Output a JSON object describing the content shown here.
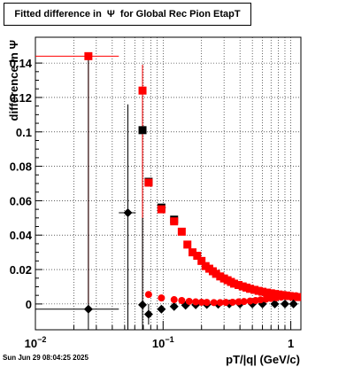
{
  "canvas": {
    "timestamp": "Sun Jun 29 08:04:25 2025"
  },
  "chart_data": {
    "type": "scatter",
    "title": "Fitted difference in  Ψ  for Global Rec Pion EtapT",
    "xlabel": "pT/|q| (GeV/c)",
    "ylabel": "difference in Ψ",
    "xscale": "log",
    "xlim": [
      0.01,
      1.2
    ],
    "ylim": [
      -0.015,
      0.155
    ],
    "grid": true,
    "x_tick_labels": [
      {
        "value": 0.01,
        "base": "10",
        "exp": "−2"
      },
      {
        "value": 0.1,
        "base": "10",
        "exp": "−1"
      },
      {
        "value": 1,
        "base": "1",
        "exp": ""
      }
    ],
    "y_ticks": [
      0,
      0.02,
      0.04,
      0.06,
      0.08,
      0.1,
      0.12,
      0.14
    ],
    "y_tick_labels": [
      "0",
      "0.02",
      "0.04",
      "0.06",
      "0.08",
      "0.1",
      "0.12",
      "0.14"
    ],
    "series": [
      {
        "color": "#000000",
        "marker": "square",
        "points": [
          {
            "x": 0.069,
            "y": 0.101,
            "ylo": 0.0,
            "yhi": 0.117,
            "xlo": 0.0665,
            "xhi": 0.0715
          },
          {
            "x": 0.077,
            "y": 0.071,
            "xlo": 0.0745,
            "xhi": 0.0795
          },
          {
            "x": 0.097,
            "y": 0.056,
            "xlo": 0.09,
            "xhi": 0.105
          },
          {
            "x": 0.122,
            "y": 0.049,
            "xlo": 0.115,
            "xhi": 0.13
          }
        ]
      },
      {
        "color": "#ff0000",
        "marker": "square",
        "points": [
          {
            "x": 0.026,
            "y": 0.144,
            "ylo": 0.0,
            "yhi": 0.144,
            "xlo": 0.01,
            "xhi": 0.045
          },
          {
            "x": 0.069,
            "y": 0.124,
            "ylo": 0.0,
            "yhi": 0.139
          },
          {
            "x": 0.077,
            "y": 0.0705
          },
          {
            "x": 0.097,
            "y": 0.055
          },
          {
            "x": 0.122,
            "y": 0.048
          },
          {
            "x": 0.14,
            "y": 0.042
          },
          {
            "x": 0.155,
            "y": 0.0345
          },
          {
            "x": 0.17,
            "y": 0.03
          },
          {
            "x": 0.185,
            "y": 0.028
          },
          {
            "x": 0.2,
            "y": 0.025
          },
          {
            "x": 0.215,
            "y": 0.022
          },
          {
            "x": 0.23,
            "y": 0.0205
          },
          {
            "x": 0.245,
            "y": 0.019
          },
          {
            "x": 0.26,
            "y": 0.0175
          },
          {
            "x": 0.28,
            "y": 0.016
          },
          {
            "x": 0.3,
            "y": 0.0148
          },
          {
            "x": 0.32,
            "y": 0.0138
          },
          {
            "x": 0.34,
            "y": 0.0128
          },
          {
            "x": 0.36,
            "y": 0.0118
          },
          {
            "x": 0.39,
            "y": 0.011
          },
          {
            "x": 0.42,
            "y": 0.0102
          },
          {
            "x": 0.45,
            "y": 0.0095
          },
          {
            "x": 0.48,
            "y": 0.0088
          },
          {
            "x": 0.52,
            "y": 0.0082
          },
          {
            "x": 0.56,
            "y": 0.0076
          },
          {
            "x": 0.6,
            "y": 0.0071
          },
          {
            "x": 0.65,
            "y": 0.0066
          },
          {
            "x": 0.7,
            "y": 0.0062
          },
          {
            "x": 0.75,
            "y": 0.0058
          },
          {
            "x": 0.8,
            "y": 0.0055
          },
          {
            "x": 0.86,
            "y": 0.0052
          },
          {
            "x": 0.92,
            "y": 0.0049
          },
          {
            "x": 0.98,
            "y": 0.0046
          },
          {
            "x": 1.05,
            "y": 0.0043
          },
          {
            "x": 1.12,
            "y": 0.004
          }
        ]
      },
      {
        "color": "#000000",
        "marker": "diamond",
        "points": [
          {
            "x": 0.026,
            "y": -0.003,
            "ylo": -0.015,
            "yhi": 0.144,
            "xlo": 0.01,
            "xhi": 0.045
          },
          {
            "x": 0.053,
            "y": 0.053,
            "ylo": -0.015,
            "yhi": 0.116,
            "xlo": 0.045,
            "xhi": 0.061
          },
          {
            "x": 0.069,
            "y": -0.0005,
            "ylo": -0.015,
            "yhi": 0.05
          },
          {
            "x": 0.077,
            "y": -0.006,
            "ylo": -0.012,
            "yhi": 0.0
          },
          {
            "x": 0.097,
            "y": -0.003
          },
          {
            "x": 0.122,
            "y": -0.0015
          },
          {
            "x": 0.15,
            "y": -0.0008
          },
          {
            "x": 0.18,
            "y": -0.0005
          },
          {
            "x": 0.22,
            "y": -0.0003
          },
          {
            "x": 0.27,
            "y": -0.0002
          },
          {
            "x": 0.33,
            "y": 0.0
          },
          {
            "x": 0.4,
            "y": 0.0
          },
          {
            "x": 0.5,
            "y": 0.0
          },
          {
            "x": 0.6,
            "y": 0.0
          },
          {
            "x": 0.75,
            "y": 0.0
          },
          {
            "x": 0.9,
            "y": 0.0
          },
          {
            "x": 1.05,
            "y": 0.0
          }
        ]
      },
      {
        "color": "#ff0000",
        "marker": "circle",
        "points": [
          {
            "x": 0.077,
            "y": 0.0055
          },
          {
            "x": 0.097,
            "y": 0.0035
          },
          {
            "x": 0.122,
            "y": 0.0025
          },
          {
            "x": 0.14,
            "y": 0.002
          },
          {
            "x": 0.16,
            "y": 0.0015
          },
          {
            "x": 0.18,
            "y": 0.0012
          },
          {
            "x": 0.2,
            "y": 0.001
          },
          {
            "x": 0.22,
            "y": 0.0009
          },
          {
            "x": 0.25,
            "y": 0.0008
          },
          {
            "x": 0.28,
            "y": 0.0008
          },
          {
            "x": 0.31,
            "y": 0.0009
          },
          {
            "x": 0.35,
            "y": 0.001
          },
          {
            "x": 0.39,
            "y": 0.0012
          },
          {
            "x": 0.43,
            "y": 0.0014
          },
          {
            "x": 0.48,
            "y": 0.0017
          },
          {
            "x": 0.53,
            "y": 0.002
          },
          {
            "x": 0.58,
            "y": 0.0024
          },
          {
            "x": 0.64,
            "y": 0.0028
          },
          {
            "x": 0.7,
            "y": 0.0032
          },
          {
            "x": 0.77,
            "y": 0.0036
          },
          {
            "x": 0.84,
            "y": 0.004
          },
          {
            "x": 0.92,
            "y": 0.0043
          },
          {
            "x": 1.0,
            "y": 0.0046
          },
          {
            "x": 1.1,
            "y": 0.0048
          }
        ]
      }
    ]
  }
}
